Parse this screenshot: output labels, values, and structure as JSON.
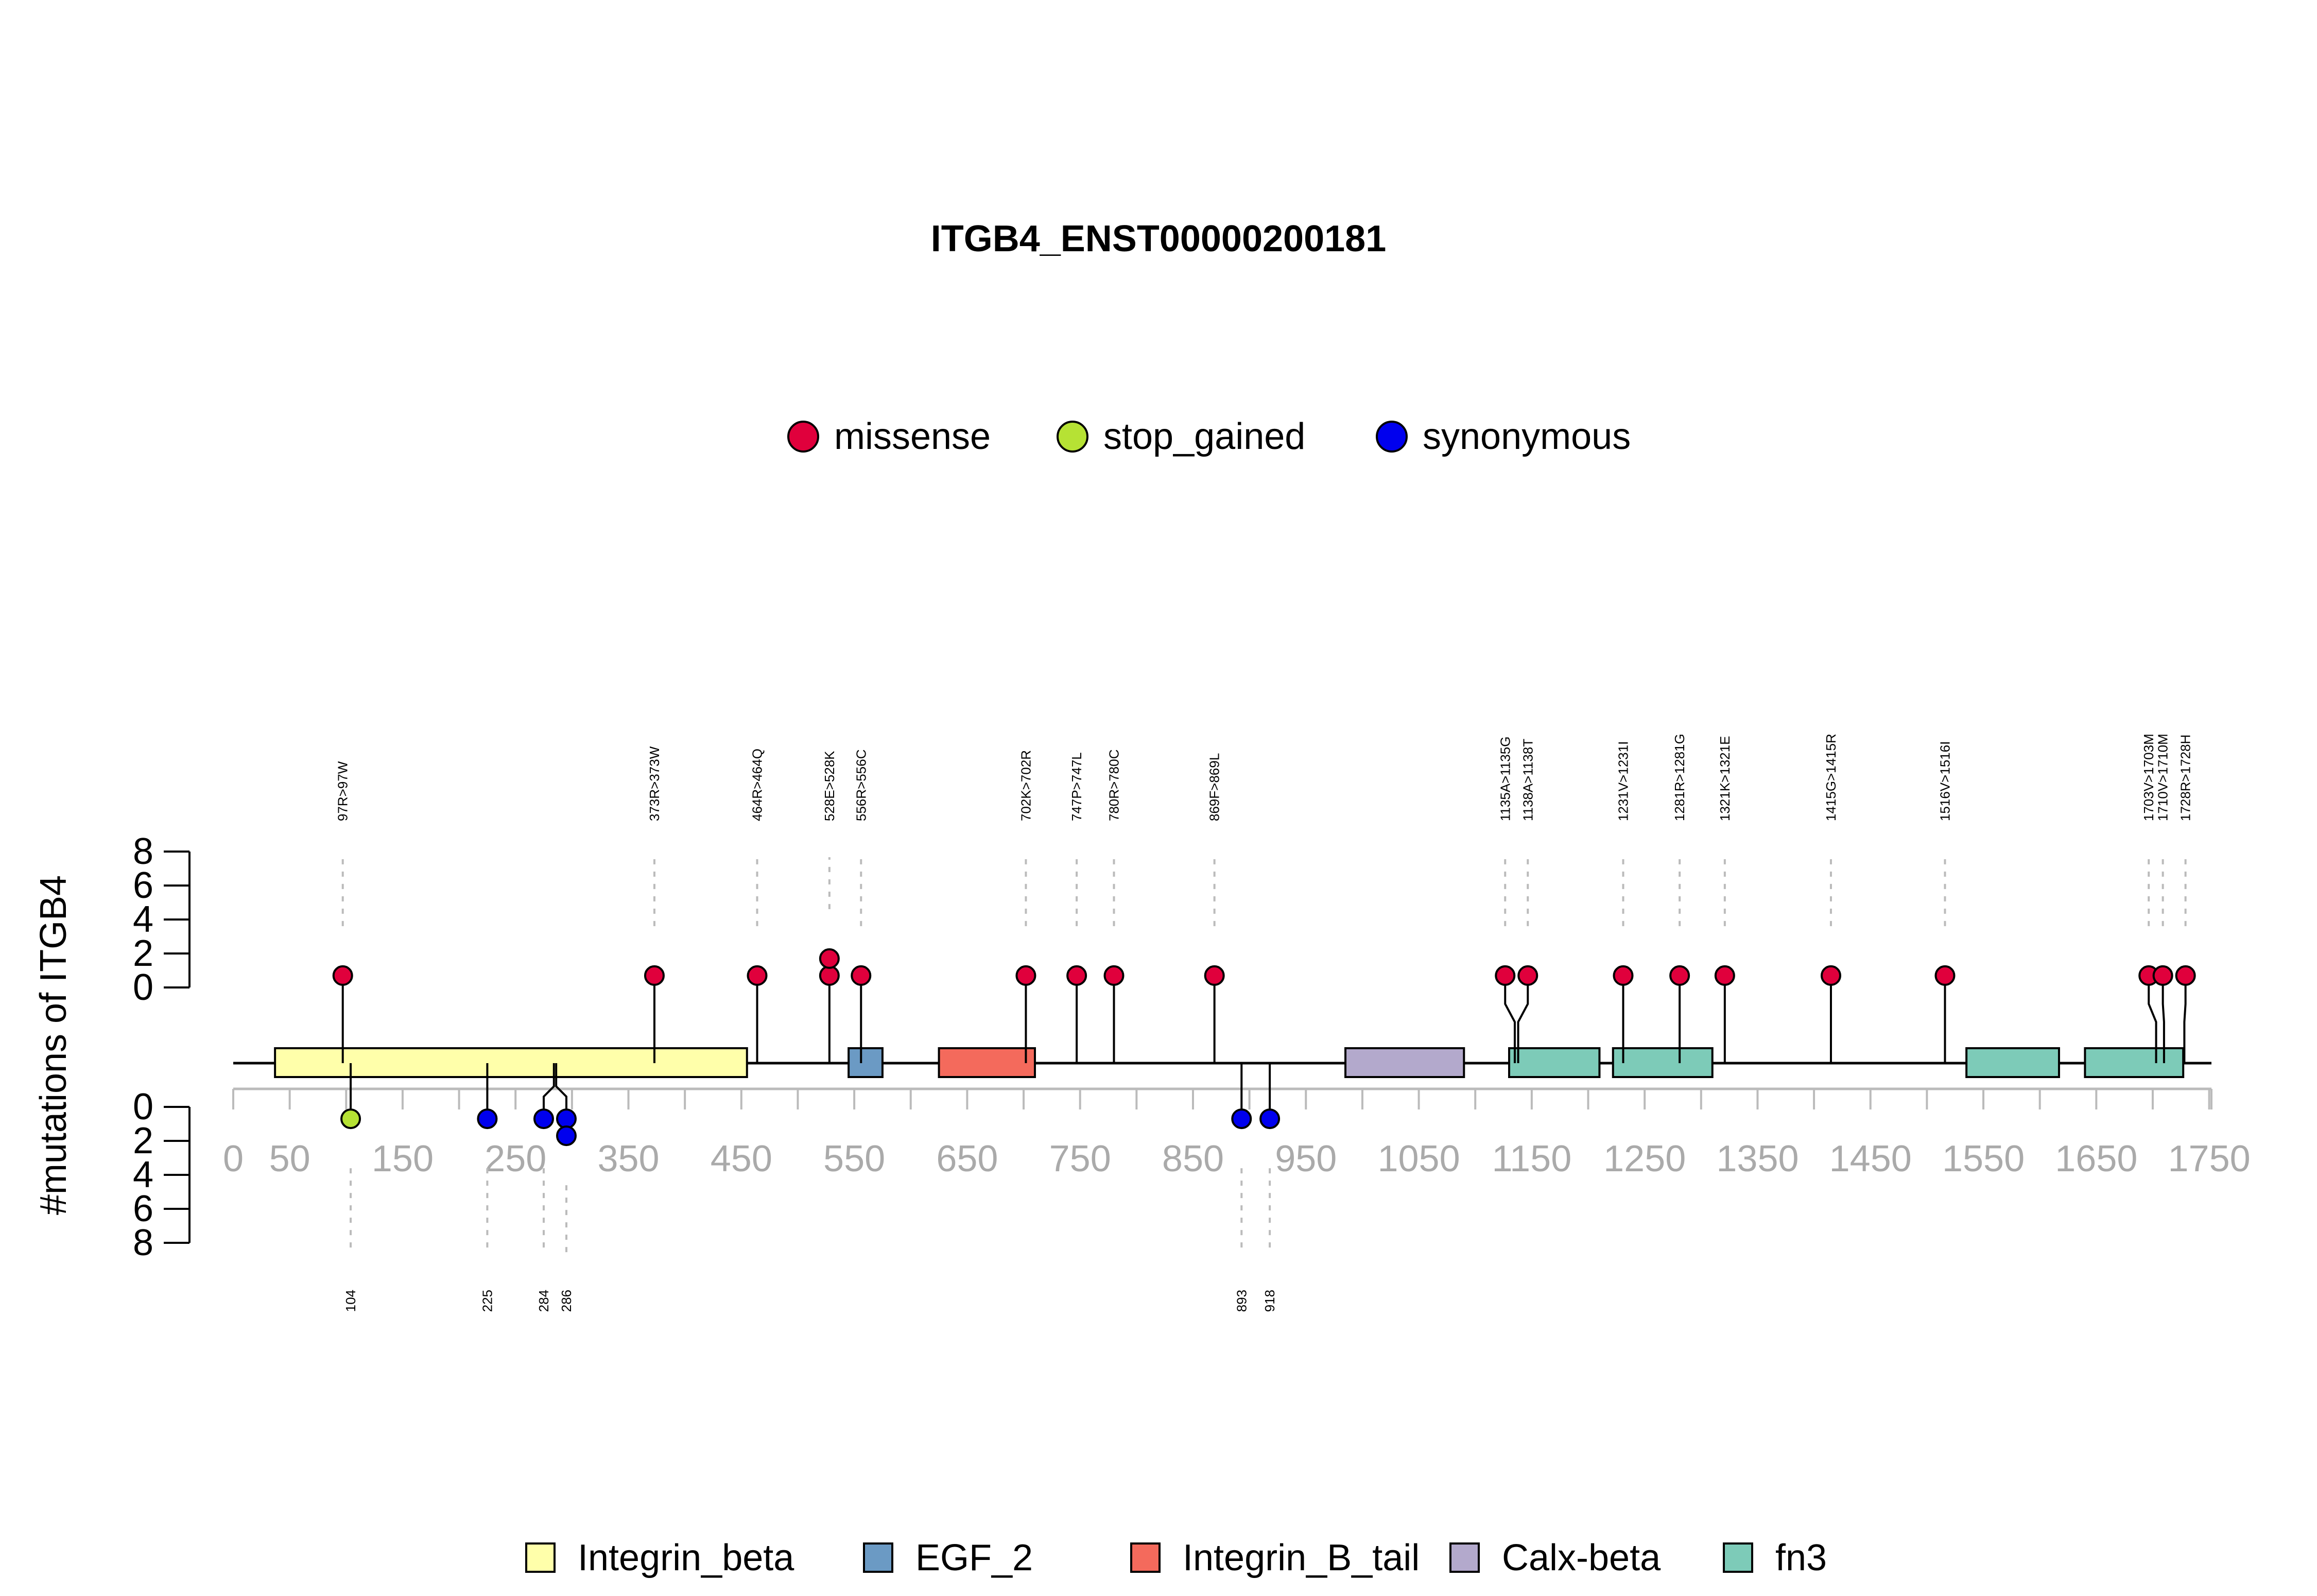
{
  "chart_data": {
    "type": "lollipop",
    "title": "ITGB4_ENST00000200181",
    "ylabel": "#mutations of ITGB4",
    "xlim": [
      0,
      1752
    ],
    "x_ticks": [
      0,
      50,
      150,
      250,
      350,
      450,
      550,
      650,
      750,
      850,
      950,
      1050,
      1150,
      1250,
      1350,
      1450,
      1550,
      1650,
      1750
    ],
    "y_ticks": [
      0,
      2,
      4,
      6,
      8
    ],
    "mutation_legend": [
      {
        "name": "missense",
        "color": "#E0003C"
      },
      {
        "name": "stop_gained",
        "color": "#B6E234"
      },
      {
        "name": "synonymous",
        "color": "#0000EE"
      }
    ],
    "domain_legend": [
      {
        "name": "Integrin_beta",
        "color": "#FFFFAA"
      },
      {
        "name": "EGF_2",
        "color": "#6B9AC4"
      },
      {
        "name": "Integrin_B_tail",
        "color": "#F46A5C"
      },
      {
        "name": "Calx-beta",
        "color": "#B3A9CC"
      },
      {
        "name": "fn3",
        "color": "#7DCBB8"
      }
    ],
    "domains": [
      {
        "name": "Integrin_beta",
        "start": 37,
        "end": 455
      },
      {
        "name": "EGF_2",
        "start": 545,
        "end": 575
      },
      {
        "name": "Integrin_B_tail",
        "start": 625,
        "end": 710
      },
      {
        "name": "Calx-beta",
        "start": 985,
        "end": 1090
      },
      {
        "name": "fn3",
        "start": 1130,
        "end": 1210
      },
      {
        "name": "fn3",
        "start": 1222,
        "end": 1310
      },
      {
        "name": "fn3",
        "start": 1535,
        "end": 1617
      },
      {
        "name": "fn3",
        "start": 1640,
        "end": 1727
      }
    ],
    "upper_mutations": [
      {
        "label": "97R>97W",
        "position": 97,
        "count": 1,
        "type": "missense"
      },
      {
        "label": "373R>373W",
        "position": 373,
        "count": 1,
        "type": "missense"
      },
      {
        "label": "464R>464Q",
        "position": 464,
        "count": 1,
        "type": "missense"
      },
      {
        "label": "528E>528K",
        "position": 528,
        "count": 2,
        "type": "missense"
      },
      {
        "label": "556R>556C",
        "position": 556,
        "count": 1,
        "type": "missense"
      },
      {
        "label": "702K>702R",
        "position": 702,
        "count": 1,
        "type": "missense"
      },
      {
        "label": "747P>747L",
        "position": 747,
        "count": 1,
        "type": "missense"
      },
      {
        "label": "780R>780C",
        "position": 780,
        "count": 1,
        "type": "missense"
      },
      {
        "label": "869F>869L",
        "position": 869,
        "count": 1,
        "type": "missense"
      },
      {
        "label": "1135A>1135G",
        "position": 1135,
        "count": 1,
        "type": "missense"
      },
      {
        "label": "1138A>1138T",
        "position": 1138,
        "count": 1,
        "type": "missense"
      },
      {
        "label": "1231V>1231I",
        "position": 1231,
        "count": 1,
        "type": "missense"
      },
      {
        "label": "1281R>1281G",
        "position": 1281,
        "count": 1,
        "type": "missense"
      },
      {
        "label": "1321K>1321E",
        "position": 1321,
        "count": 1,
        "type": "missense"
      },
      {
        "label": "1415G>1415R",
        "position": 1415,
        "count": 1,
        "type": "missense"
      },
      {
        "label": "1516V>1516I",
        "position": 1516,
        "count": 1,
        "type": "missense"
      },
      {
        "label": "1703V>1703M",
        "position": 1703,
        "count": 1,
        "type": "missense"
      },
      {
        "label": "1710V>1710M",
        "position": 1710,
        "count": 1,
        "type": "missense"
      },
      {
        "label": "1728R>1728H",
        "position": 1728,
        "count": 1,
        "type": "missense"
      }
    ],
    "lower_mutations": [
      {
        "label": "104",
        "position": 104,
        "count": 1,
        "type": "stop_gained"
      },
      {
        "label": "225",
        "position": 225,
        "count": 1,
        "type": "synonymous"
      },
      {
        "label": "284",
        "position": 284,
        "count": 1,
        "type": "synonymous"
      },
      {
        "label": "286",
        "position": 286,
        "count": 2,
        "type": "synonymous"
      },
      {
        "label": "893",
        "position": 893,
        "count": 1,
        "type": "synonymous"
      },
      {
        "label": "918",
        "position": 918,
        "count": 1,
        "type": "synonymous"
      }
    ]
  }
}
